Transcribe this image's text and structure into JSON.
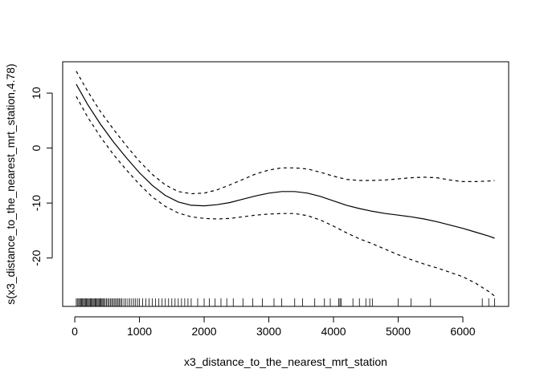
{
  "chart_data": {
    "type": "line",
    "title": "",
    "xlabel": "x3_distance_to_the_nearest_mrt_station",
    "ylabel": "s(x3_distance_to_the_nearest_mrt_station,4.78)",
    "xlim": [
      -187,
      6708
    ],
    "ylim": [
      -28.8,
      15.7
    ],
    "xticks": [
      0,
      1000,
      2000,
      3000,
      4000,
      5000,
      6000
    ],
    "xtick_labels": [
      "0",
      "1000",
      "2000",
      "3000",
      "4000",
      "5000",
      "6000"
    ],
    "yticks": [
      10,
      0,
      -10,
      -20
    ],
    "ytick_labels": [
      "10",
      "0",
      "-10",
      "-20"
    ],
    "grid": false,
    "legend": "none",
    "series": [
      {
        "line_style": "solid",
        "x": [
          23,
          200,
          400,
          600,
          800,
          1000,
          1200,
          1400,
          1600,
          1800,
          2000,
          2200,
          2400,
          2600,
          2800,
          3000,
          3200,
          3400,
          3600,
          3800,
          4000,
          4200,
          4400,
          4600,
          4800,
          5000,
          5200,
          5400,
          5600,
          5800,
          6000,
          6200,
          6400,
          6490
        ],
        "y": [
          11.6,
          7.9,
          4.3,
          1.1,
          -1.8,
          -4.5,
          -6.8,
          -8.6,
          -9.8,
          -10.4,
          -10.5,
          -10.3,
          -9.9,
          -9.3,
          -8.7,
          -8.2,
          -7.9,
          -7.9,
          -8.2,
          -8.8,
          -9.6,
          -10.4,
          -11.0,
          -11.5,
          -11.9,
          -12.2,
          -12.5,
          -12.9,
          -13.4,
          -14.0,
          -14.6,
          -15.3,
          -16.0,
          -16.4
        ]
      },
      {
        "line_style": "dashed",
        "x": [
          23,
          200,
          400,
          600,
          800,
          1000,
          1200,
          1400,
          1600,
          1800,
          2000,
          2200,
          2400,
          2600,
          2800,
          3000,
          3200,
          3400,
          3600,
          3800,
          4000,
          4200,
          4400,
          4600,
          4800,
          5000,
          5200,
          5400,
          5600,
          5800,
          6000,
          6200,
          6400,
          6490
        ],
        "y": [
          14.0,
          10.3,
          6.6,
          3.4,
          0.4,
          -2.4,
          -4.8,
          -6.7,
          -7.9,
          -8.3,
          -8.2,
          -7.6,
          -6.7,
          -5.7,
          -4.7,
          -4.0,
          -3.6,
          -3.6,
          -3.8,
          -4.4,
          -5.1,
          -5.7,
          -5.9,
          -5.9,
          -5.8,
          -5.6,
          -5.4,
          -5.3,
          -5.4,
          -5.8,
          -6.1,
          -6.1,
          -6.0,
          -5.9
        ]
      },
      {
        "line_style": "dashed",
        "x": [
          23,
          200,
          400,
          600,
          800,
          1000,
          1200,
          1400,
          1600,
          1800,
          2000,
          2200,
          2400,
          2600,
          2800,
          3000,
          3200,
          3400,
          3600,
          3800,
          4000,
          4200,
          4400,
          4600,
          4800,
          5000,
          5200,
          5400,
          5600,
          5800,
          6000,
          6200,
          6400,
          6490
        ],
        "y": [
          9.4,
          5.6,
          2.0,
          -1.2,
          -4.0,
          -6.6,
          -8.9,
          -10.6,
          -11.8,
          -12.5,
          -12.8,
          -12.9,
          -12.8,
          -12.5,
          -12.2,
          -12.0,
          -11.9,
          -11.9,
          -12.3,
          -13.1,
          -14.2,
          -15.4,
          -16.5,
          -17.4,
          -18.4,
          -19.4,
          -20.3,
          -21.1,
          -21.8,
          -22.6,
          -23.4,
          -24.6,
          -26.1,
          -26.9
        ]
      }
    ],
    "rug": [
      23,
      40,
      60,
      75,
      90,
      105,
      120,
      135,
      150,
      165,
      180,
      195,
      210,
      225,
      240,
      255,
      270,
      285,
      300,
      315,
      330,
      345,
      360,
      375,
      390,
      405,
      420,
      435,
      450,
      470,
      490,
      510,
      530,
      550,
      570,
      590,
      610,
      630,
      650,
      670,
      690,
      710,
      730,
      760,
      790,
      820,
      850,
      880,
      910,
      940,
      970,
      1000,
      1050,
      1100,
      1150,
      1200,
      1250,
      1300,
      1350,
      1400,
      1450,
      1500,
      1550,
      1600,
      1650,
      1700,
      1750,
      1800,
      1900,
      2000,
      2080,
      2170,
      2260,
      2350,
      2450,
      2600,
      2750,
      2900,
      3080,
      3200,
      3400,
      3520,
      3710,
      3860,
      3950,
      4080,
      4100,
      4120,
      4300,
      4400,
      4500,
      4560,
      4600,
      5000,
      5200,
      5500,
      6300,
      6400,
      6490
    ]
  }
}
